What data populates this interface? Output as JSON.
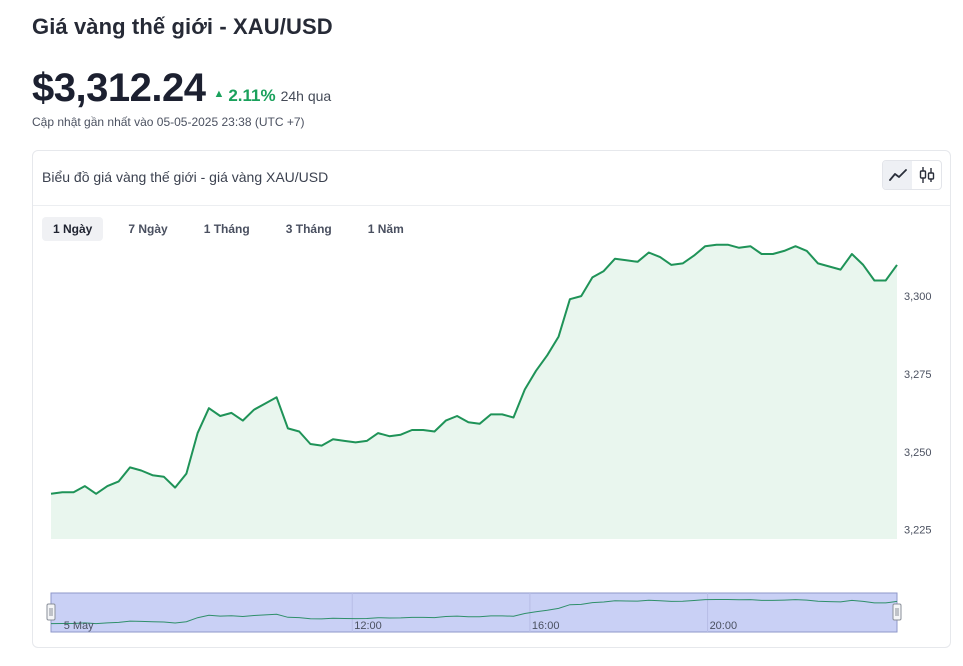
{
  "header": {
    "title": "Giá vàng thế giới - XAU/USD",
    "price": "$3,312.24",
    "change": "2.11%",
    "period": "24h qua",
    "updated": "Cập nhật gần nhất vào 05-05-2025 23:38 (UTC +7)"
  },
  "card": {
    "title": "Biểu đồ giá vàng thế giới - giá vàng XAU/USD",
    "tabs": [
      {
        "label": "1 Ngày",
        "active": true
      },
      {
        "label": "7 Ngày",
        "active": false
      },
      {
        "label": "1 Tháng",
        "active": false
      },
      {
        "label": "3 Tháng",
        "active": false
      },
      {
        "label": "1 Năm",
        "active": false
      }
    ],
    "toggle_icons": [
      "line-chart-icon",
      "candlestick-chart-icon"
    ]
  },
  "colors": {
    "line": "#1f9358",
    "area_fill": "#e9f6ee",
    "up": "#1aa15c",
    "navigator_fill": "#c9d0f5",
    "navigator_border": "#8e97c9"
  },
  "chart_data": {
    "type": "area",
    "title": "",
    "xlabel": "",
    "ylabel": "",
    "ylim": [
      3222,
      3318
    ],
    "y_ticks": [
      "3,225",
      "3,250",
      "3,275",
      "3,300"
    ],
    "y_tick_values": [
      3225,
      3250,
      3275,
      3300
    ],
    "navigator_labels": [
      "5 May",
      "12:00",
      "16:00",
      "20:00"
    ],
    "navigator_label_positions": [
      0.015,
      0.375,
      0.585,
      0.795
    ],
    "series": [
      {
        "values": [
          3236.5,
          3237,
          3237,
          3239,
          3236.5,
          3239,
          3240.5,
          3245,
          3244,
          3242.5,
          3242,
          3238.5,
          3243,
          3256,
          3264,
          3261.5,
          3262.5,
          3260,
          3263.5,
          3265.5,
          3267.5,
          3257.5,
          3256.5,
          3252.5,
          3252,
          3254,
          3253.5,
          3253,
          3253.5,
          3256,
          3255,
          3255.5,
          3257,
          3257,
          3256.5,
          3260,
          3261.5,
          3259.5,
          3259,
          3262,
          3262,
          3261,
          3270,
          3276,
          3281,
          3287,
          3299,
          3300,
          3306,
          3308,
          3312,
          3311.5,
          3311,
          3314,
          3312.5,
          3310,
          3310.5,
          3313,
          3316,
          3316.5,
          3316.5,
          3315.5,
          3316,
          3313.5,
          3313.5,
          3314.5,
          3316,
          3314.5,
          3310.5,
          3309.5,
          3308.5,
          3313.5,
          3310,
          3305,
          3305,
          3310
        ]
      }
    ]
  }
}
